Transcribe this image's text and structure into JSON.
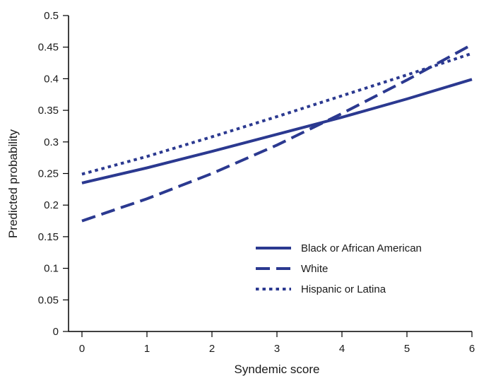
{
  "chart_data": {
    "type": "line",
    "title": "",
    "xlabel": "Syndemic score",
    "ylabel": "Predicted probability",
    "xlim": [
      0,
      6
    ],
    "ylim": [
      0,
      0.5
    ],
    "x_ticks": [
      0,
      1,
      2,
      3,
      4,
      5,
      6
    ],
    "y_ticks": [
      0,
      0.05,
      0.1,
      0.15,
      0.2,
      0.25,
      0.3,
      0.35,
      0.4,
      0.45,
      0.5
    ],
    "x_tick_labels": [
      "0",
      "1",
      "2",
      "3",
      "4",
      "5",
      "6"
    ],
    "y_tick_labels": [
      "0",
      "0.05",
      "0.1",
      "0.15",
      "0.2",
      "0.25",
      "0.3",
      "0.35",
      "0.4",
      "0.45",
      "0.5"
    ],
    "grid": false,
    "legend_position": "bottom-right",
    "line_color": "#2b3990",
    "x": [
      0,
      1,
      2,
      3,
      4,
      5,
      6
    ],
    "series": [
      {
        "name": "Black or African American",
        "style": "solid",
        "values": [
          0.235,
          0.259,
          0.285,
          0.312,
          0.339,
          0.368,
          0.399
        ]
      },
      {
        "name": "White",
        "style": "dashed",
        "values": [
          0.175,
          0.21,
          0.25,
          0.295,
          0.345,
          0.398,
          0.454
        ]
      },
      {
        "name": "Hispanic or Latina",
        "style": "dotted",
        "values": [
          0.249,
          0.277,
          0.308,
          0.34,
          0.373,
          0.406,
          0.44
        ]
      }
    ]
  }
}
